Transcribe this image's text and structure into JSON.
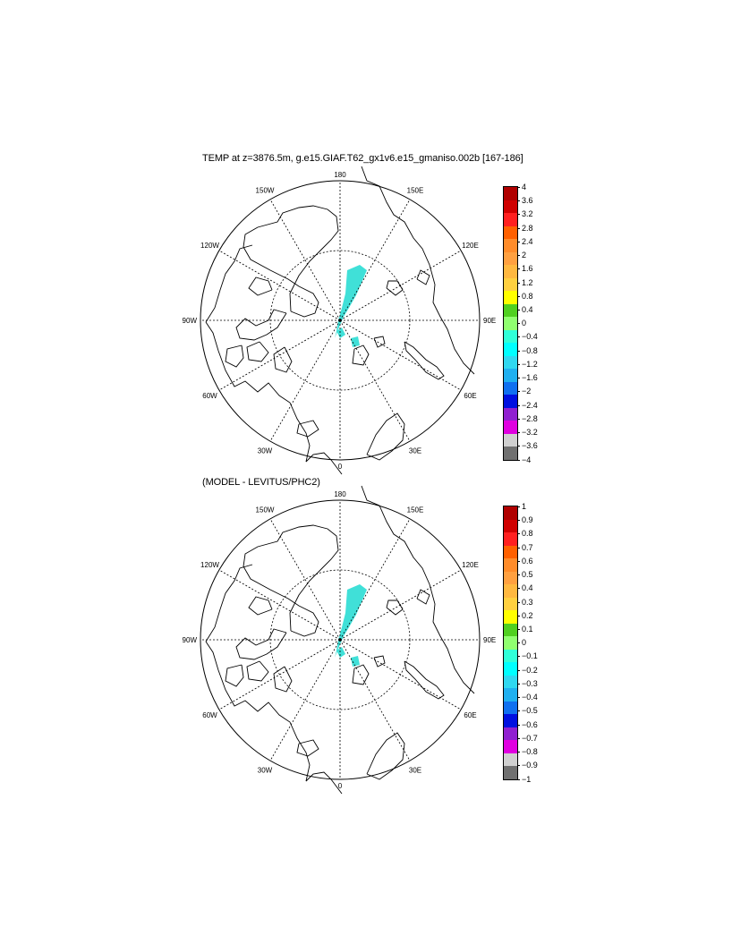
{
  "panels": [
    {
      "title": "TEMP at z=3876.5m, g.e15.GIAF.T62_gx1v6.e15_gmaniso.002b [167-186]",
      "lon_labels": [
        "180",
        "150E",
        "120E",
        "90E",
        "60E",
        "30E",
        "0",
        "30W",
        "60W",
        "90W",
        "120W",
        "150W"
      ],
      "legend": {
        "labels": [
          "4",
          "3.6",
          "3.2",
          "2.8",
          "2.4",
          "2",
          "1.6",
          "1.2",
          "0.8",
          "0.4",
          "0",
          "−0.4",
          "−0.8",
          "−1.2",
          "−1.6",
          "−2",
          "−2.4",
          "−2.8",
          "−3.2",
          "−3.6",
          "−4"
        ],
        "colors": [
          "#b00000",
          "#d00000",
          "#ff2020",
          "#ff6000",
          "#ff8c2a",
          "#ffa040",
          "#ffb840",
          "#ffd040",
          "#ffff00",
          "#50d020",
          "#90ff70",
          "#30ffd8",
          "#00ffff",
          "#30d8f0",
          "#20b0f0",
          "#1070f0",
          "#0010e0",
          "#9020d0",
          "#e000e0",
          "#d0d0d0",
          "#707070"
        ]
      }
    },
    {
      "title": "(MODEL - LEVITUS/PHC2)",
      "lon_labels": [
        "180",
        "150E",
        "120E",
        "90E",
        "60E",
        "30E",
        "0",
        "30W",
        "60W",
        "90W",
        "120W",
        "150W"
      ],
      "legend": {
        "labels": [
          "1",
          "0.9",
          "0.8",
          "0.7",
          "0.6",
          "0.5",
          "0.4",
          "0.3",
          "0.2",
          "0.1",
          "0",
          "−0.1",
          "−0.2",
          "−0.3",
          "−0.4",
          "−0.5",
          "−0.6",
          "−0.7",
          "−0.8",
          "−0.9",
          "−1"
        ],
        "colors": [
          "#b00000",
          "#d00000",
          "#ff2020",
          "#ff6000",
          "#ff8c2a",
          "#ffa040",
          "#ffb840",
          "#ffd040",
          "#ffff00",
          "#50d020",
          "#90ff70",
          "#30ffd8",
          "#00ffff",
          "#30d8f0",
          "#20b0f0",
          "#1070f0",
          "#0010e0",
          "#9020d0",
          "#e000e0",
          "#d0d0d0",
          "#707070"
        ]
      }
    }
  ],
  "colors": {
    "field_fill": "#40e0d8",
    "coastline": "#000000",
    "grid": "#000000"
  }
}
